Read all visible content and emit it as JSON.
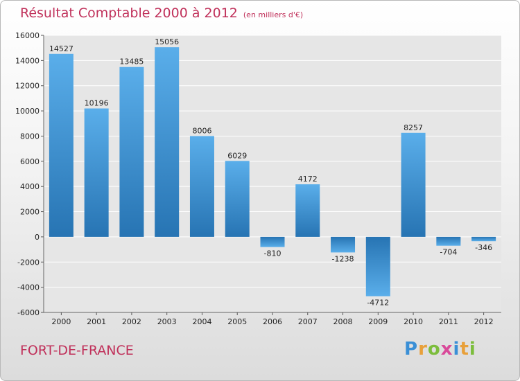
{
  "title": "Résultat Comptable 2000 à 2012",
  "subtitle": "(en milliers d'€)",
  "city": "FORT-DE-FRANCE",
  "brand": {
    "text": "Proxiti",
    "letters": [
      {
        "ch": "P",
        "color": "#3a8fd6"
      },
      {
        "ch": "r",
        "color": "#e8a03a"
      },
      {
        "ch": "o",
        "color": "#7cbd3c"
      },
      {
        "ch": "x",
        "color": "#d94a9a"
      },
      {
        "ch": "i",
        "color": "#3a8fd6"
      },
      {
        "ch": "t",
        "color": "#e8a03a"
      },
      {
        "ch": "i",
        "color": "#7cbd3c"
      }
    ]
  },
  "colors": {
    "title": "#c0305a",
    "bar_light": "#5aaeea",
    "bar_dark": "#2774b3",
    "grid": "#ffffff",
    "plot_bg": "#e6e6e6"
  },
  "chart_data": {
    "type": "bar",
    "title": "Résultat Comptable 2000 à 2012",
    "subtitle": "(en milliers d'€)",
    "xlabel": "",
    "ylabel": "",
    "categories": [
      "2000",
      "2001",
      "2002",
      "2003",
      "2004",
      "2005",
      "2006",
      "2007",
      "2008",
      "2009",
      "2010",
      "2011",
      "2012"
    ],
    "values": [
      14527,
      10196,
      13485,
      15056,
      8006,
      6029,
      -810,
      4172,
      -1238,
      -4712,
      8257,
      -704,
      -346
    ],
    "ylim": [
      -6000,
      16000
    ],
    "yticks": [
      -6000,
      -4000,
      -2000,
      0,
      2000,
      4000,
      6000,
      8000,
      10000,
      12000,
      14000,
      16000
    ],
    "grid": true,
    "legend": "none"
  }
}
